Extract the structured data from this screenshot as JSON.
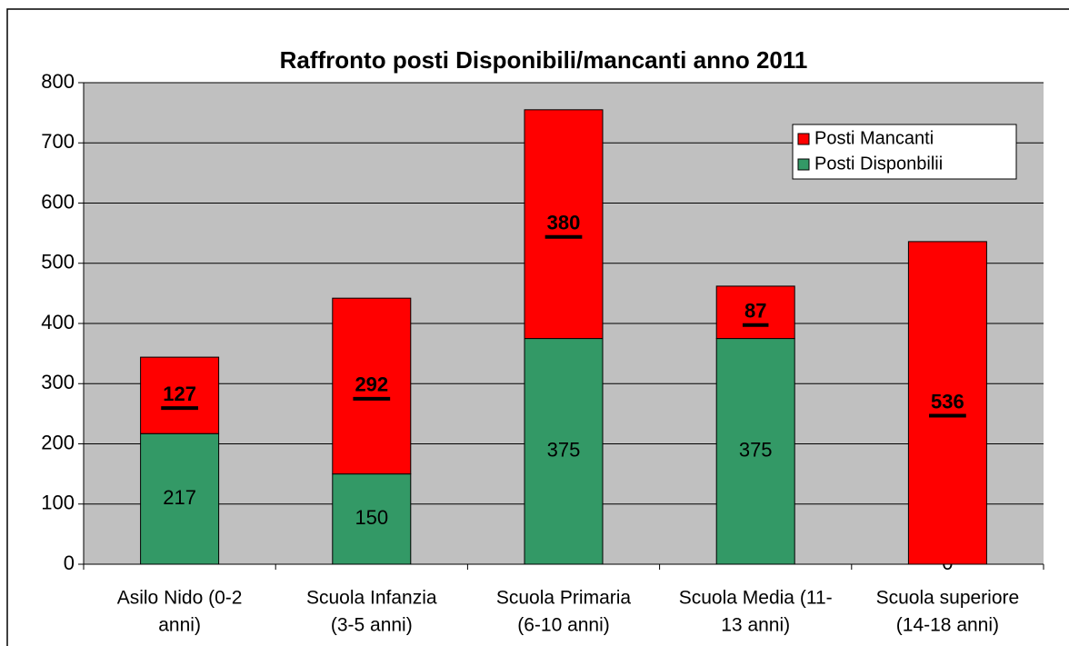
{
  "chart_data": {
    "type": "stacked_bar",
    "title": "Raffronto posti Disponibili/mancanti anno 2011",
    "categories": [
      [
        "Asilo Nido (0-2",
        "anni)"
      ],
      [
        "Scuola Infanzia",
        "(3-5 anni)"
      ],
      [
        "Scuola Primaria",
        "(6-10 anni)"
      ],
      [
        "Scuola Media (11-",
        "13 anni)"
      ],
      [
        "Scuola superiore",
        "(14-18 anni)"
      ]
    ],
    "series": [
      {
        "name": "Posti Disponbilii",
        "color": "#339966",
        "values": [
          217,
          150,
          375,
          375,
          0
        ]
      },
      {
        "name": "Posti Mancanti",
        "color": "#ff0000",
        "values": [
          127,
          292,
          380,
          87,
          536
        ]
      }
    ],
    "ylim": [
      0,
      800
    ],
    "yticks": [
      0,
      100,
      200,
      300,
      400,
      500,
      600,
      700,
      800
    ],
    "grid": true,
    "legend": "top-right",
    "plot_background": "#c0c0c0"
  }
}
